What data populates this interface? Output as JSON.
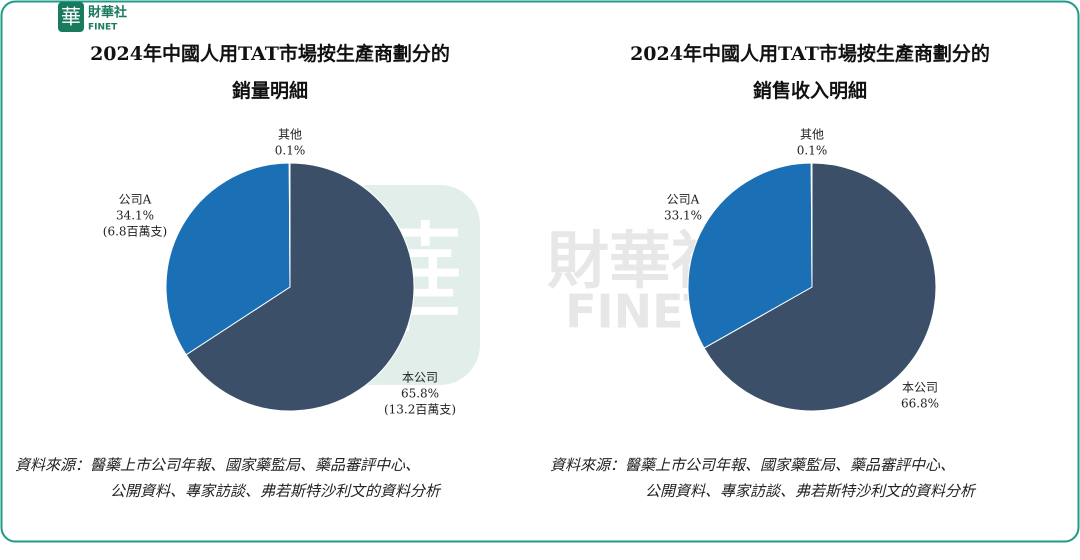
{
  "brand": {
    "logo_char": "華",
    "name": "財華社",
    "name_en": "FINET"
  },
  "chart_data": [
    {
      "type": "pie",
      "title": [
        "2024年中國人用TAT市場按生產商劃分的",
        "銷量明細"
      ],
      "categories": [
        "本公司",
        "公司A",
        "其他"
      ],
      "values": [
        65.8,
        34.1,
        0.1
      ],
      "value_labels": [
        "65.8%",
        "34.1%",
        "0.1%"
      ],
      "volume_labels": [
        "(13.2百萬支)",
        "(6.8百萬支)",
        null
      ],
      "colors": [
        "#3b5068",
        "#1a6fb5",
        "#c9d3de"
      ],
      "source": [
        "資料來源：醫藥上市公司年報、國家藥監局、藥品審評中心、",
        "公開資料、專家訪談、弗若斯特沙利文的資料分析"
      ]
    },
    {
      "type": "pie",
      "title": [
        "2024年中國人用TAT市場按生產商劃分的",
        "銷售收入明細"
      ],
      "categories": [
        "本公司",
        "公司A",
        "其他"
      ],
      "values": [
        66.8,
        33.1,
        0.1
      ],
      "value_labels": [
        "66.8%",
        "33.1%",
        "0.1%"
      ],
      "colors": [
        "#3b5068",
        "#1a6fb5",
        "#c9d3de"
      ],
      "source": [
        "資料來源：醫藥上市公司年報、國家藥監局、藥品審評中心、",
        "公開資料、專家訪談、弗若斯特沙利文的資料分析"
      ]
    }
  ]
}
